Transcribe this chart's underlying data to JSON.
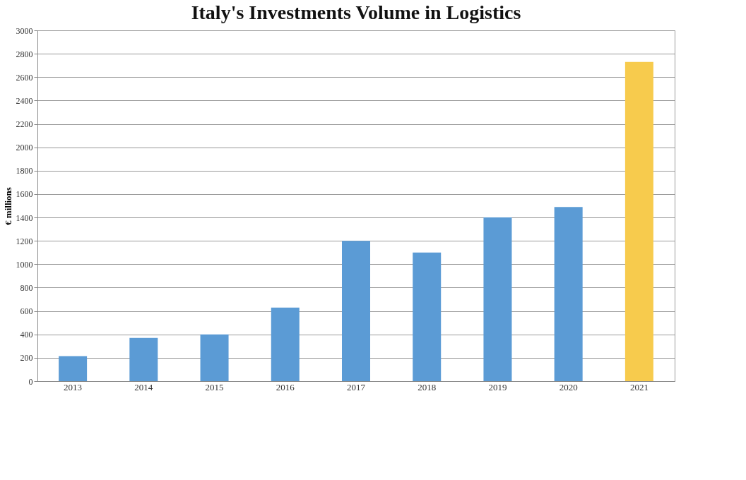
{
  "chart_data": {
    "type": "bar",
    "title": "Italy's Investments Volume in Logistics",
    "ylabel": "€ millions",
    "categories": [
      "2013",
      "2014",
      "2015",
      "2016",
      "2017",
      "2018",
      "2019",
      "2020",
      "2021"
    ],
    "values": [
      215,
      370,
      400,
      630,
      1200,
      1100,
      1400,
      1490,
      2730
    ],
    "colors": [
      "#5b9bd5",
      "#5b9bd5",
      "#5b9bd5",
      "#5b9bd5",
      "#5b9bd5",
      "#5b9bd5",
      "#5b9bd5",
      "#5b9bd5",
      "#f7cb4d"
    ],
    "ylim": [
      0,
      3000
    ],
    "yticks": [
      0,
      200,
      400,
      600,
      800,
      1000,
      1200,
      1400,
      1600,
      1800,
      2000,
      2200,
      2400,
      2600,
      2800,
      3000
    ],
    "grid": "y",
    "legend": false
  }
}
